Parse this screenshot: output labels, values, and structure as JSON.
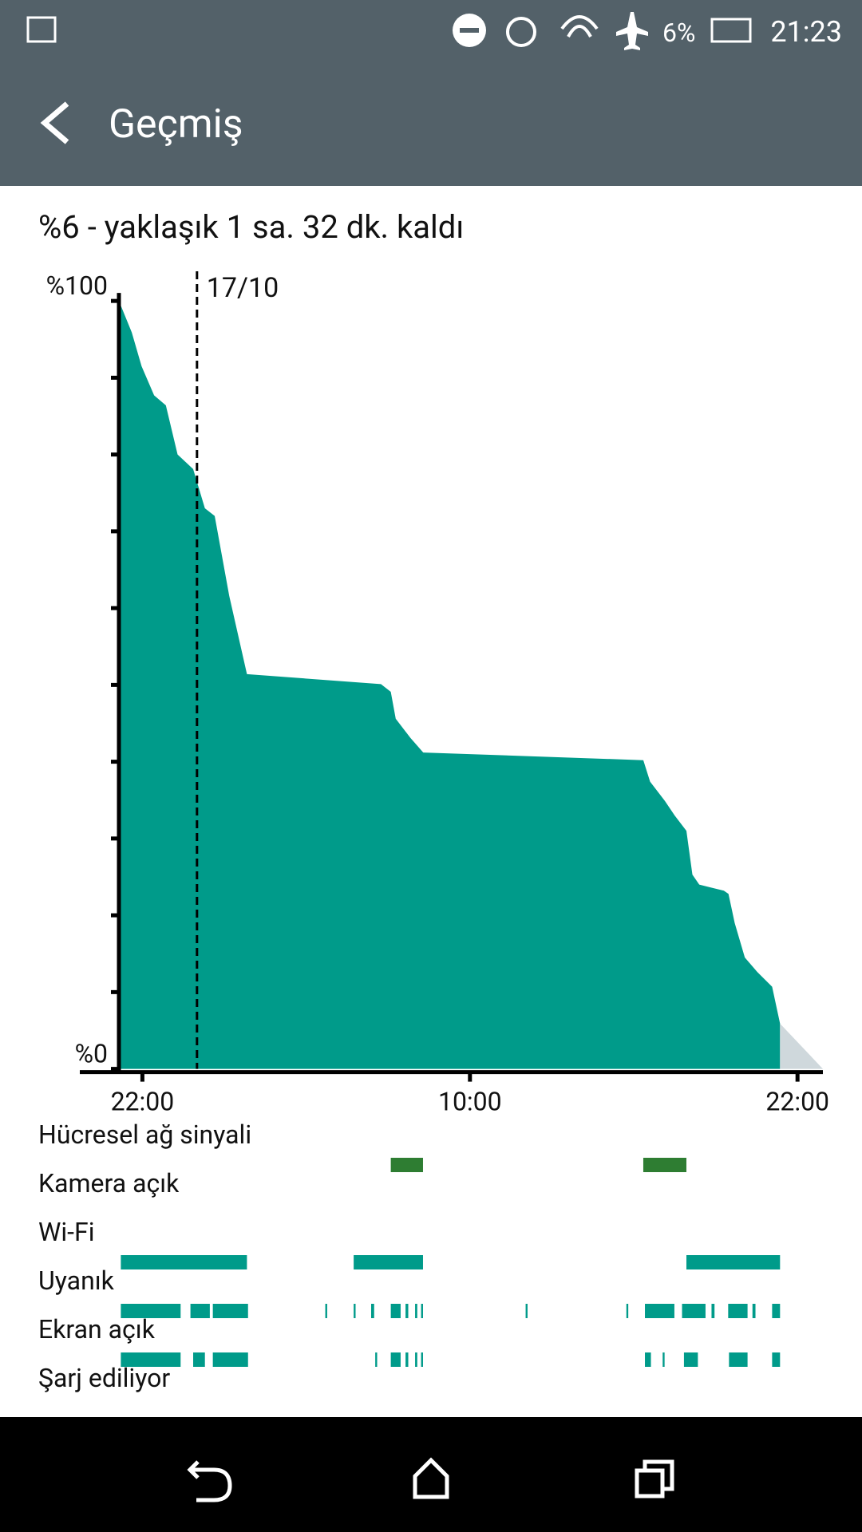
{
  "status_bar": {
    "battery": "6%",
    "time": "21:23"
  },
  "header": {
    "title": "Geçmiş"
  },
  "summary": "%6 - yaklaşık 1 sa. 32 dk. kaldı",
  "chart_data": {
    "type": "area",
    "color": "#009b8a",
    "x": [
      21.14,
      21.61,
      21.97,
      22.43,
      22.86,
      23.29,
      23.86,
      24.29,
      24.65,
      25.18,
      25.83,
      30.74,
      31.1,
      31.28,
      31.82,
      32.29,
      40.35,
      40.6,
      41.14,
      41.5,
      41.93,
      42.15,
      42.4,
      43.3,
      43.47,
      43.7,
      44.07,
      44.53,
      45.07,
      45.36
    ],
    "values": [
      100,
      95.9,
      91.5,
      87.7,
      86.4,
      80,
      78.1,
      73,
      72,
      61.6,
      51.4,
      50.1,
      49.1,
      45.6,
      43.1,
      41.2,
      40.2,
      37.4,
      34.9,
      33,
      31,
      25.3,
      24,
      23.2,
      22.8,
      19,
      14.5,
      12.6,
      10.7,
      5.9
    ],
    "projection_color": "#cfd8dc",
    "xlim": [
      21.14,
      46.93
    ],
    "xticks": [
      {
        "value": 22,
        "label": "22:00"
      },
      {
        "value": 34,
        "label": "10:00"
      },
      {
        "value": 46,
        "label": "22:00"
      }
    ],
    "ylim": [
      0,
      100
    ],
    "yticks": [
      {
        "value": 100,
        "label": "%100"
      },
      {
        "value": 0,
        "label": "%0"
      }
    ],
    "yminor": [
      10,
      20,
      30,
      40,
      50,
      60,
      70,
      80,
      90
    ],
    "date_marker": {
      "x": 24,
      "label": "17/10"
    },
    "activity": [
      {
        "label": "Hücresel ağ sinyali",
        "color": "#2e7d32",
        "segments": [
          [
            31.1,
            32.28
          ],
          [
            40.35,
            41.93
          ]
        ]
      },
      {
        "label": "Kamera açık",
        "color": "#009b8a",
        "segments": []
      },
      {
        "label": "Wi-Fi",
        "color": "#009b8a",
        "segments": [
          [
            21.21,
            25.83
          ],
          [
            29.74,
            32.28
          ],
          [
            41.93,
            45.36
          ]
        ]
      },
      {
        "label": "Uyanık",
        "color": "#009b8a",
        "segments": [
          [
            21.21,
            23.4
          ],
          [
            23.76,
            24.47
          ],
          [
            24.58,
            25.87
          ],
          [
            28.7,
            28.77
          ],
          [
            29.74,
            29.81
          ],
          [
            30.38,
            30.49
          ],
          [
            31.1,
            31.46
          ],
          [
            31.64,
            31.74
          ],
          [
            31.99,
            32.07
          ],
          [
            32.21,
            32.28
          ],
          [
            36.04,
            36.11
          ],
          [
            39.73,
            39.8
          ],
          [
            40.41,
            41.49
          ],
          [
            41.77,
            42.63
          ],
          [
            42.85,
            42.96
          ],
          [
            43.46,
            44.17
          ],
          [
            44.35,
            44.46
          ],
          [
            45.07,
            45.36
          ]
        ]
      },
      {
        "label": "Ekran açık",
        "color": "#009b8a",
        "segments": [
          [
            21.21,
            23.4
          ],
          [
            23.86,
            24.29
          ],
          [
            24.58,
            25.87
          ],
          [
            30.53,
            30.6
          ],
          [
            31.1,
            31.46
          ],
          [
            31.64,
            31.74
          ],
          [
            31.99,
            32.07
          ],
          [
            32.21,
            32.28
          ],
          [
            40.41,
            40.63
          ],
          [
            41.06,
            41.13
          ],
          [
            41.84,
            42.35
          ],
          [
            43.49,
            44.17
          ],
          [
            45.07,
            45.36
          ]
        ]
      },
      {
        "label": "Şarj ediliyor",
        "color": "#009b8a",
        "segments": []
      }
    ]
  }
}
